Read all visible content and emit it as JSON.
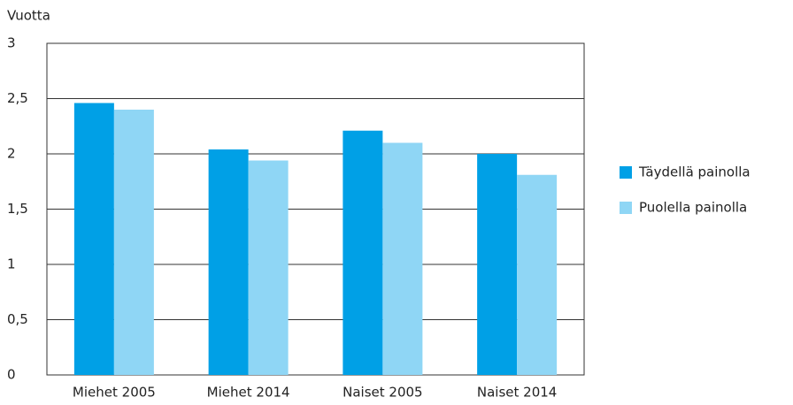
{
  "chart_data": {
    "type": "bar",
    "y_label": "Vuotta",
    "categories": [
      "Miehet 2005",
      "Miehet 2014",
      "Naiset 2005",
      "Naiset 2014"
    ],
    "series": [
      {
        "name": "Täydellä painolla",
        "color": "#00a0e6",
        "values": [
          2.46,
          2.04,
          2.21,
          2.0
        ]
      },
      {
        "name": "Puolella painolla",
        "color": "#8fd6f5",
        "values": [
          2.4,
          1.94,
          2.1,
          1.81
        ]
      }
    ],
    "ylim": [
      0,
      3
    ],
    "yticks": [
      0,
      {
        "value": 0.5,
        "label": "0,5"
      },
      1,
      {
        "value": 1.5,
        "label": "1,5"
      },
      2,
      {
        "value": 2.5,
        "label": "2,5"
      },
      3
    ],
    "grid": true,
    "legend": "right"
  }
}
